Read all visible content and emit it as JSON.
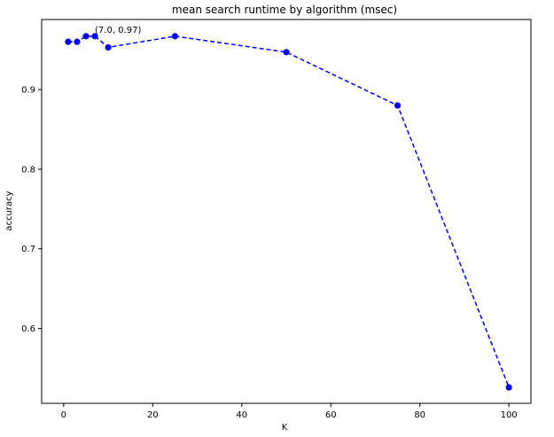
{
  "chart_data": {
    "type": "line",
    "title": "mean search runtime by algorithm (msec)",
    "xlabel": "K",
    "ylabel": "accuracy",
    "xlim": [
      -4.95,
      104.95
    ],
    "ylim": [
      0.506,
      0.988
    ],
    "x_ticks": [
      0,
      20,
      40,
      60,
      80,
      100
    ],
    "y_ticks": [
      0.6,
      0.7,
      0.8,
      0.9
    ],
    "x_tick_labels": [
      "0",
      "20",
      "40",
      "60",
      "80",
      "100"
    ],
    "y_tick_labels": [
      "0.6",
      "0.7",
      "0.8",
      "0.9"
    ],
    "grid": false,
    "series": [
      {
        "name": "accuracy",
        "color": "#0000ff",
        "line_style": "dashed",
        "marker": "circle",
        "x": [
          1,
          3,
          5,
          7,
          10,
          25,
          50,
          75,
          100
        ],
        "y": [
          0.96,
          0.96,
          0.967,
          0.967,
          0.953,
          0.967,
          0.947,
          0.88,
          0.526
        ]
      }
    ],
    "annotations": [
      {
        "text": "(7.0, 0.97)",
        "x": 7,
        "y": 0.967
      }
    ]
  }
}
